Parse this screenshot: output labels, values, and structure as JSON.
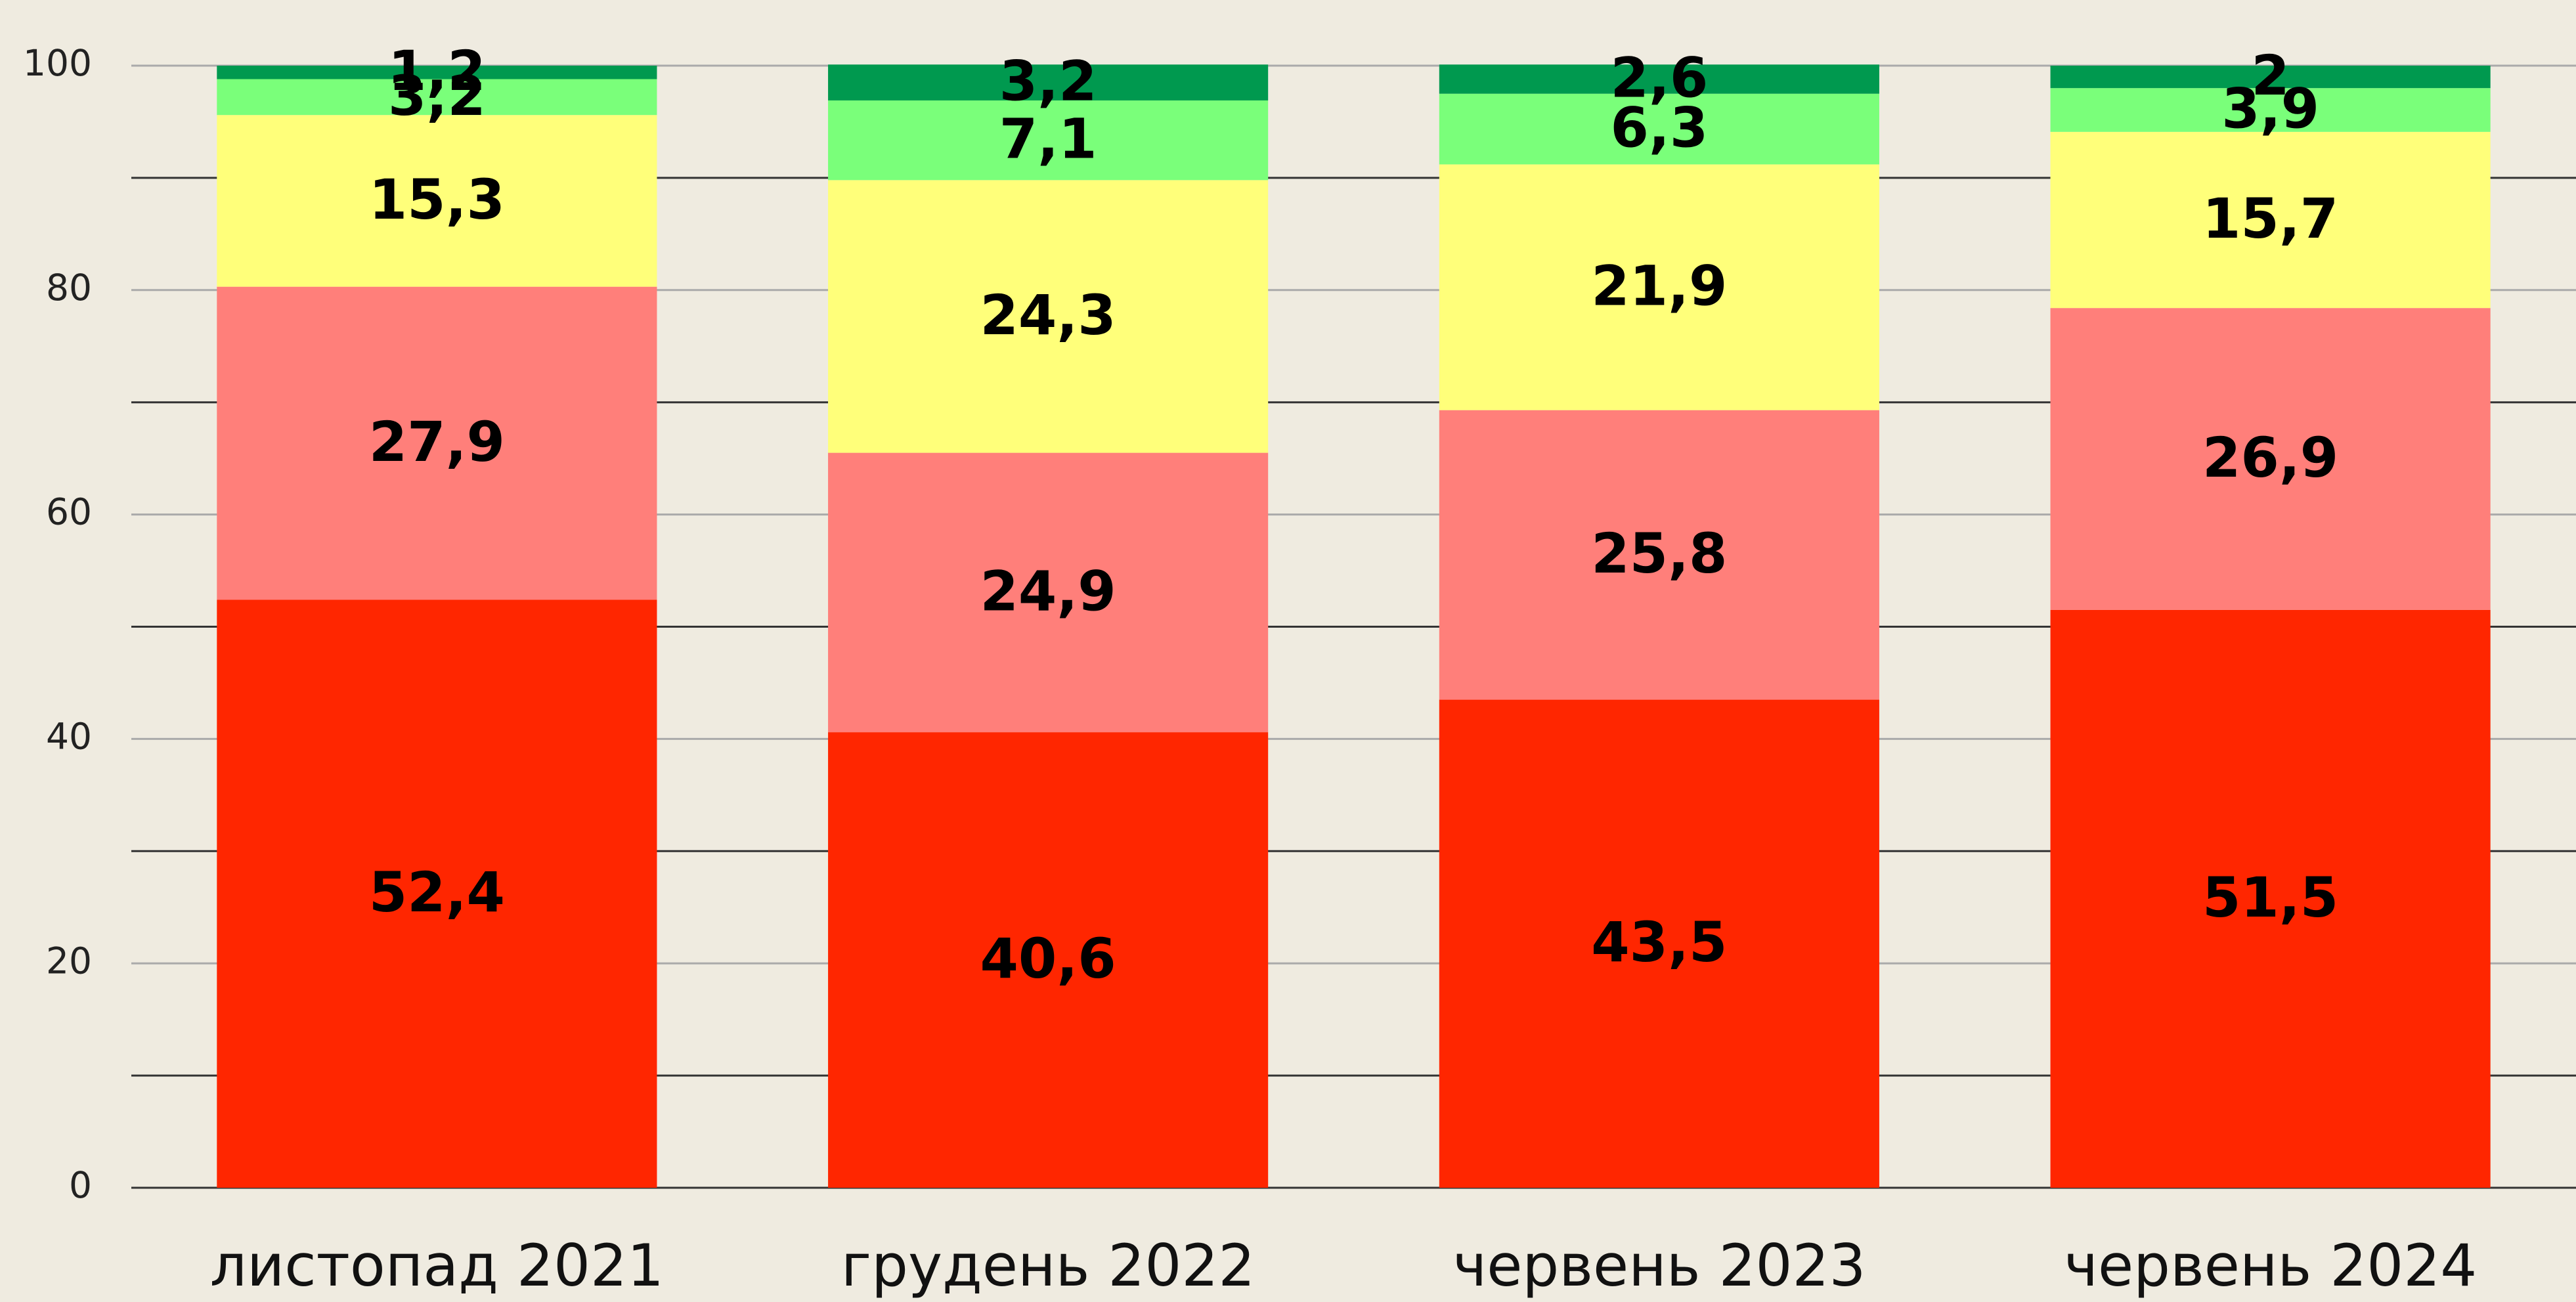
{
  "chart_data": {
    "type": "stacked_bar",
    "categories": [
      "листопад 2021",
      "грудень 2022",
      "червень 2023",
      "червень 2024"
    ],
    "series": [
      {
        "color": "#ff2600",
        "values": [
          52.4,
          40.6,
          43.5,
          51.5
        ],
        "value_labels": [
          "52,4",
          "40,6",
          "43,5",
          "51,5"
        ]
      },
      {
        "color": "#ff7f7a",
        "values": [
          27.9,
          24.9,
          25.8,
          26.9
        ],
        "value_labels": [
          "27,9",
          "24,9",
          "25,8",
          "26,9"
        ]
      },
      {
        "color": "#ffff7a",
        "values": [
          15.3,
          24.3,
          21.9,
          15.7
        ],
        "value_labels": [
          "15,3",
          "24,3",
          "21,9",
          "15,7"
        ]
      },
      {
        "color": "#7aff7a",
        "values": [
          3.2,
          7.1,
          6.3,
          3.9
        ],
        "value_labels": [
          "3,2",
          "7,1",
          "6,3",
          "3,9"
        ]
      },
      {
        "color": "#00994f",
        "values": [
          1.2,
          3.2,
          2.6,
          2
        ],
        "value_labels": [
          "1,2",
          "3,2",
          "2,6",
          "2"
        ]
      }
    ],
    "ylim": [
      0,
      100
    ],
    "yticks": [
      0,
      20,
      40,
      60,
      80,
      100
    ],
    "minor_yticks": [
      10,
      30,
      50,
      70,
      90
    ],
    "grid": true
  }
}
